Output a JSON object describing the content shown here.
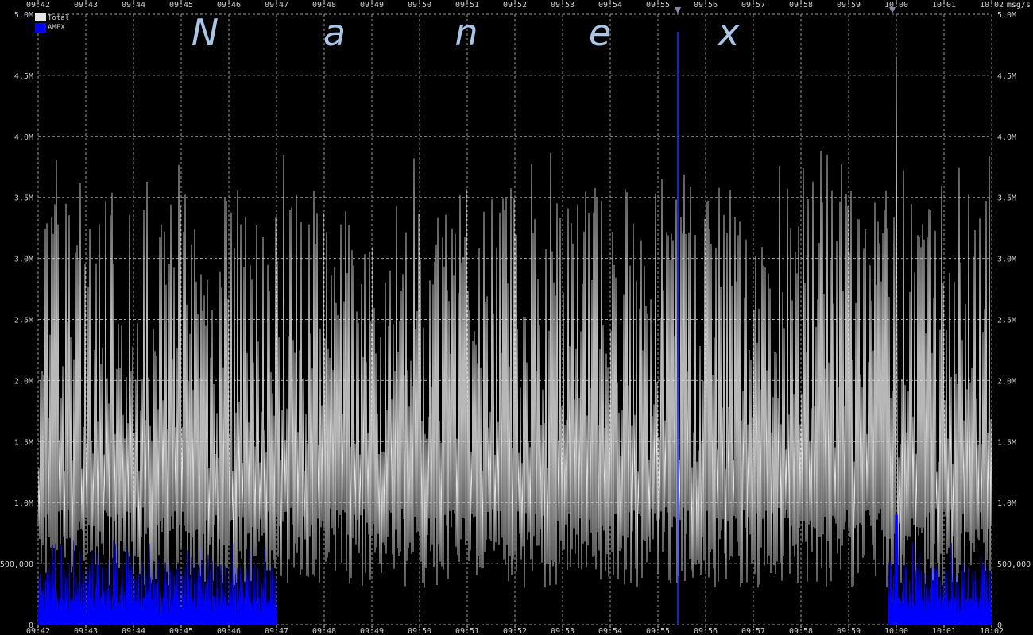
{
  "chart_data": {
    "type": "area",
    "title": "",
    "watermark": "Nanex",
    "ylabel": "msg/s",
    "ylim": [
      0,
      5000000
    ],
    "x_range": [
      "09:42",
      "10:02"
    ],
    "x_ticks": [
      "09:42",
      "09:43",
      "09:44",
      "09:45",
      "09:46",
      "09:47",
      "09:48",
      "09:49",
      "09:50",
      "09:51",
      "09:52",
      "09:53",
      "09:54",
      "09:55",
      "09:56",
      "09:57",
      "09:58",
      "09:59",
      "10:00",
      "10:01",
      "10:02"
    ],
    "y_ticks": [
      {
        "value": 0,
        "label": "0"
      },
      {
        "value": 500000,
        "label": "500,000"
      },
      {
        "value": 1000000,
        "label": "1.0M"
      },
      {
        "value": 1500000,
        "label": "1.5M"
      },
      {
        "value": 2000000,
        "label": "2.0M"
      },
      {
        "value": 2500000,
        "label": "2.5M"
      },
      {
        "value": 3000000,
        "label": "3.0M"
      },
      {
        "value": 3500000,
        "label": "3.5M"
      },
      {
        "value": 4000000,
        "label": "4.0M"
      },
      {
        "value": 4500000,
        "label": "4.5M"
      },
      {
        "value": 5000000,
        "label": "5.0M"
      }
    ],
    "grid": true,
    "legend_position": "top-left",
    "marker_times": [
      "09:55:25",
      "09:59:55"
    ],
    "series": [
      {
        "name": "Total",
        "color": "#e6e6e6",
        "typical_low": 600000,
        "typical_high": 3200000,
        "max": 4650000,
        "max_time": "10:00:00"
      },
      {
        "name": "AMEX",
        "color": "#0000ff",
        "active_periods": [
          [
            "09:42",
            "09:47"
          ],
          [
            "09:59:50",
            "10:02"
          ]
        ],
        "typical_high": 500000,
        "max": 900000,
        "max_time": "10:00:00"
      }
    ]
  }
}
